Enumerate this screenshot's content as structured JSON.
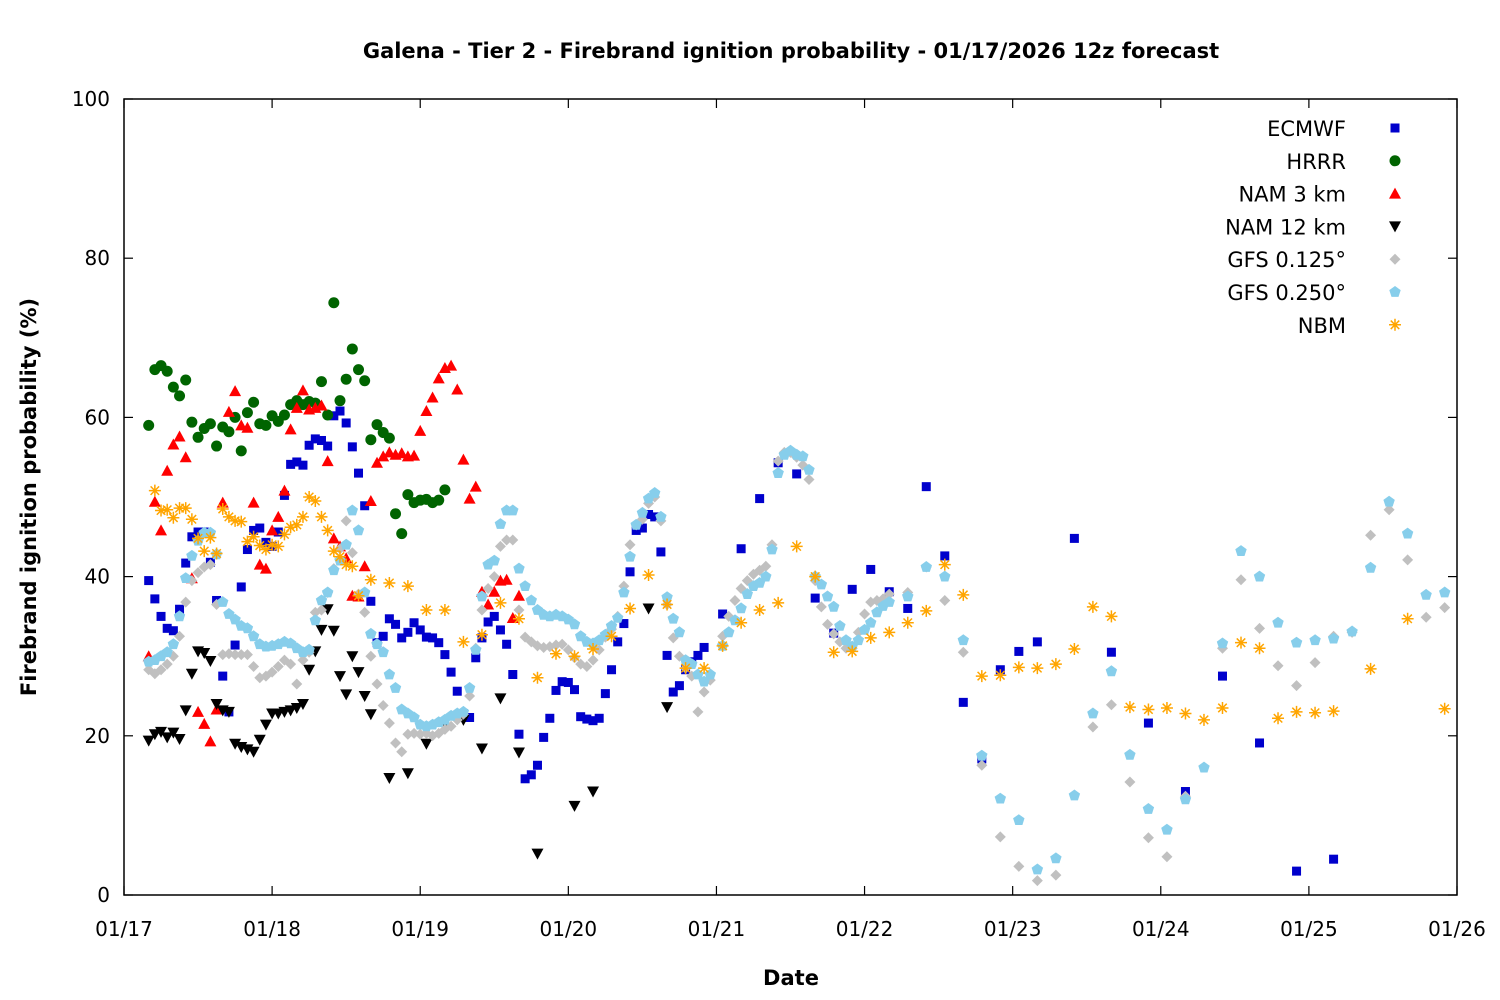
{
  "chart_data": {
    "type": "scatter",
    "title": "Galena - Tier 2 - Firebrand ignition probability - 01/17/2026 12z forecast",
    "xlabel": "Date",
    "ylabel": "Firebrand ignition probability (%)",
    "x_units": "hours from 01/17 00z",
    "xlim": [
      0,
      216
    ],
    "ylim": [
      0,
      100
    ],
    "x_ticks": [
      {
        "hour": 0,
        "label": "01/17"
      },
      {
        "hour": 24,
        "label": "01/18"
      },
      {
        "hour": 48,
        "label": "01/19"
      },
      {
        "hour": 72,
        "label": "01/20"
      },
      {
        "hour": 96,
        "label": "01/21"
      },
      {
        "hour": 120,
        "label": "01/22"
      },
      {
        "hour": 144,
        "label": "01/23"
      },
      {
        "hour": 168,
        "label": "01/24"
      },
      {
        "hour": 192,
        "label": "01/25"
      },
      {
        "hour": 216,
        "label": "01/26"
      }
    ],
    "y_ticks": [
      "0",
      "20",
      "40",
      "60",
      "80",
      "100"
    ],
    "grid": false,
    "legend_position": "top-right",
    "series": [
      {
        "name": "ECMWF",
        "color": "#0000cc",
        "marker": "square",
        "segments": [
          {
            "start": 4,
            "step": 1,
            "values": [
              39.5,
              37.2,
              35,
              33.5,
              33.2,
              35.9,
              41.7,
              45,
              45.6,
              45.6,
              41.8,
              37,
              27.5,
              23,
              31.4,
              38.7,
              43.4,
              45.8,
              46.1,
              44.3,
              43.8,
              45.6,
              50.2,
              54.1,
              54.4,
              54,
              56.5,
              57.3,
              57.1,
              56.4,
              60.2,
              60.8,
              59.3,
              56.3,
              53,
              48.9,
              36.9,
              31.7,
              32.5,
              34.7,
              34,
              32.3,
              33,
              34.2,
              33.3,
              32.4,
              32.3,
              31.7,
              30.2,
              28,
              25.6,
              22.8,
              22.3,
              29.8,
              32.3,
              34.3,
              35,
              33.3,
              31.5,
              27.7,
              20.2,
              14.6,
              15.1,
              16.3,
              19.8,
              22.2,
              25.7,
              26.8,
              26.7,
              25.8,
              22.4,
              22.1,
              21.9,
              22.2,
              25.3,
              28.3,
              31.8,
              34.1,
              40.6,
              45.8,
              46.1,
              47.8,
              47.5,
              43.1,
              30.1,
              25.5,
              26.3,
              28.3,
              29.3,
              30.1,
              31.1
            ]
          },
          {
            "start": 97,
            "step": 3,
            "values": [
              35.3,
              43.5,
              49.8,
              54.3,
              52.9,
              37.3,
              32.9,
              38.4,
              40.9,
              38.1,
              36,
              51.3,
              42.6,
              24.2,
              17.1,
              28.3,
              30.6,
              31.8,
              null,
              44.8,
              null,
              30.5,
              null,
              21.6,
              null,
              13,
              null,
              27.5,
              null,
              19.1,
              null,
              3,
              null,
              4.5
            ]
          }
        ]
      },
      {
        "name": "HRRR",
        "color": "#006400",
        "marker": "circle",
        "segments": [
          {
            "start": 4,
            "step": 1,
            "values": [
              59,
              66,
              66.5,
              65.8,
              63.8,
              62.7,
              64.7,
              59.4,
              57.5,
              58.6,
              59.2,
              56.4,
              58.8,
              58.2,
              60,
              55.8,
              60.6,
              61.9,
              59.2,
              59,
              60.2,
              59.5,
              60.3,
              61.6,
              62.1,
              61.6,
              62,
              61.8,
              64.5,
              60.3,
              74.4,
              62.1,
              64.8,
              68.6,
              66,
              64.6,
              57.2,
              59.1,
              58.1,
              57.4,
              47.9,
              45.4,
              50.3,
              49.3,
              49.6,
              49.7,
              49.3,
              49.6,
              50.9
            ]
          }
        ]
      },
      {
        "name": "NAM 3 km",
        "color": "#ff0000",
        "marker": "triangle-up",
        "segments": [
          {
            "start": 4,
            "step": 1,
            "values": [
              30,
              49.4,
              45.8,
              53.3,
              56.6,
              57.6,
              55,
              39.8,
              23,
              21.5,
              19.3,
              23.3,
              49.3,
              60.7,
              63.3,
              59,
              58.7,
              49.3,
              41.5,
              41,
              45.8,
              47.5,
              50.8,
              58.5,
              61.2,
              63.4,
              61,
              61.2,
              61.5,
              54.5,
              44.8,
              43.8,
              42.3,
              37.6,
              37.5,
              41.3,
              49.5,
              54.3,
              55.1,
              55.6,
              55.3,
              55.5,
              55.1,
              55.2,
              58.3,
              60.8,
              62.5,
              64.9,
              66.2,
              66.5,
              63.5,
              54.7,
              49.8,
              51.3,
              38.1,
              36.5,
              38.1,
              39.5,
              39.6,
              34.8,
              37.6
            ]
          }
        ]
      },
      {
        "name": "NAM 12 km",
        "color": "#000000",
        "marker": "triangle-down",
        "segments": [
          {
            "start": 4,
            "step": 1,
            "values": [
              19.4,
              20.2,
              20.5,
              19.8,
              20.4,
              19.6,
              23.2,
              27.8,
              30.6,
              30.4,
              29.4,
              24,
              23.2,
              23,
              19,
              18.6,
              18.3,
              18,
              19.5,
              21.4,
              22.8,
              22.8,
              23,
              23.2,
              23.5,
              24,
              28.3,
              30.6,
              33.3,
              35.9,
              33.2,
              27.5,
              25.2,
              30,
              28,
              25,
              22.7
            ]
          },
          {
            "start": 43,
            "step": 3,
            "values": [
              14.7,
              15.3,
              19,
              21.6,
              22,
              18.4,
              24.7,
              17.9,
              5.2,
              null,
              11.2,
              13,
              null,
              null,
              36,
              23.6
            ]
          }
        ]
      },
      {
        "name": "GFS 0.125°",
        "color": "#c0c0c0",
        "marker": "diamond",
        "segments": [
          {
            "start": 4,
            "step": 1,
            "values": [
              28.3,
              27.8,
              28.3,
              29,
              30,
              32.5,
              36.8,
              39.5,
              40.5,
              41.2,
              41.5,
              36.5,
              30.2,
              30.3,
              30.2,
              30.2,
              30.2,
              28.7,
              27.3,
              27.5,
              28,
              28.7,
              29.5,
              29,
              26.5,
              29.5,
              30.5,
              35.5,
              35.8,
              38,
              41,
              43.5,
              47,
              43,
              37.8,
              35.5,
              30,
              26.5,
              23.8,
              21.6,
              19.1,
              18,
              20.2,
              20.3,
              20.2,
              20.3,
              20,
              20.3,
              20.8,
              21.2,
              22,
              22.7,
              25,
              31,
              35.8,
              38.5,
              40,
              43.8,
              44.6,
              44.6,
              35.8,
              32.4,
              31.8,
              31.3,
              31.1,
              31.2,
              31.4,
              31.5,
              30.8,
              29.8,
              29,
              28.7,
              29.5,
              30.8,
              32.4,
              33.4,
              35,
              38.8,
              44,
              46.5,
              47.2,
              49.2,
              50,
              47,
              36.5,
              32.3,
              30,
              28.5,
              27.5,
              23,
              25.5,
              27
            ]
          },
          {
            "start": 97,
            "step": 1,
            "values": [
              32.5,
              35,
              37,
              38.5,
              39.5,
              40.3,
              40.8,
              41.3,
              44,
              54.5,
              55.6,
              55.6,
              55,
              54,
              52.2,
              39.5,
              36.2,
              34,
              32.8,
              31.8,
              31,
              31,
              33,
              35.3,
              36.8,
              37,
              37.2,
              37.8
            ]
          },
          {
            "start": 127,
            "step": 3,
            "values": [
              38,
              41.2,
              37,
              30.5,
              16.3,
              7.3,
              3.6,
              1.8,
              2.5,
              null,
              21.1,
              23.9,
              14.2,
              7.2,
              4.8,
              12.4,
              null,
              31,
              39.6,
              33.5,
              28.8,
              26.3,
              29.2,
              32.5,
              33,
              45.2,
              48.4,
              42.1,
              34.9,
              36.1
            ]
          }
        ]
      },
      {
        "name": "GFS 0.250°",
        "color": "#87ceeb",
        "marker": "pentagon",
        "segments": [
          {
            "start": 4,
            "step": 1,
            "values": [
              29.3,
              29.5,
              30,
              30.5,
              31.5,
              35,
              39.8,
              42.6,
              44.5,
              45.5,
              45.5,
              42.8,
              36.8,
              35.3,
              34.6,
              33.8,
              33.5,
              32.5,
              31.5,
              31.2,
              31.3,
              31.5,
              31.8,
              31.6,
              31,
              30.5,
              30.8,
              34.5,
              37,
              38,
              40.8,
              42,
              44,
              48.3,
              45.8,
              38,
              32.8,
              31.5,
              30.5,
              27.7,
              26,
              23.3,
              22.8,
              22.3,
              21.4,
              21.2,
              21.4,
              21.7,
              22,
              22.5,
              22.8,
              23,
              26,
              30.8,
              37.5,
              41.5,
              42,
              46.6,
              48.3,
              48.3,
              41,
              38.8,
              37,
              35.8,
              35.2,
              35,
              35.2,
              35,
              34.6,
              34,
              32.5,
              31.8,
              31.6,
              32,
              32.7,
              33.8,
              34.8,
              38,
              42.5,
              46.5,
              48,
              49.8,
              50.5,
              47.5,
              37.4,
              34.7,
              33,
              29.5,
              29,
              27.7,
              26.8,
              27.7
            ]
          },
          {
            "start": 97,
            "step": 1,
            "values": [
              31.3,
              33,
              34.5,
              36,
              37.8,
              38.8,
              39.2,
              40,
              43.4,
              53,
              55.3,
              55.8,
              55.3,
              55.1,
              53.4,
              40,
              39,
              37.5,
              36.2,
              33.8,
              32,
              31.2,
              32,
              33.3,
              34.2,
              35.5,
              36.3,
              36.8
            ]
          },
          {
            "start": 127,
            "step": 3,
            "values": [
              37.5,
              41.2,
              40,
              32,
              17.5,
              12.1,
              9.4,
              3.2,
              4.6,
              12.5,
              22.8,
              28.1,
              17.6,
              10.8,
              8.2,
              12,
              16,
              31.6,
              43.2,
              40,
              34.2,
              31.7,
              32,
              32.2,
              33.1,
              41.1,
              49.4,
              45.4,
              37.7,
              38
            ]
          }
        ]
      },
      {
        "name": "NBM",
        "color": "#ffa500",
        "marker": "star",
        "segments": [
          {
            "start": 5,
            "step": 1,
            "values": [
              50.8,
              48.3,
              48.4,
              47.4,
              48.6,
              48.6,
              47.2,
              44.8,
              43.2,
              44.9,
              42.9,
              48.5,
              47.5,
              47,
              46.9,
              44.4,
              45,
              43.9,
              43.4,
              44,
              43.8,
              45.3,
              46.2,
              46.5,
              47.5,
              50,
              49.5,
              47.5,
              45.8,
              43.2,
              42.5,
              41.5,
              41.3,
              37.6
            ]
          },
          {
            "start": 40,
            "step": 3,
            "values": [
              39.6,
              39.2,
              38.8,
              35.8,
              35.8,
              31.8,
              32.7,
              36.7,
              34.7,
              27.3,
              30.3,
              30,
              30.9,
              32.5,
              36,
              40.2,
              36.5,
              28.5,
              28.5,
              31.3,
              34.2,
              35.8,
              36.7,
              43.8,
              40,
              30.5,
              30.6,
              32.3,
              33,
              34.2,
              35.7,
              41.5,
              37.7,
              27.5,
              27.6,
              28.6,
              28.5,
              29,
              30.9,
              36.2,
              35,
              23.6,
              23.3,
              23.5,
              22.8,
              22,
              23.5,
              31.7,
              31,
              22.2,
              23,
              22.9,
              23.1,
              null,
              28.4,
              null,
              34.7,
              null,
              23.4
            ]
          }
        ]
      }
    ]
  }
}
